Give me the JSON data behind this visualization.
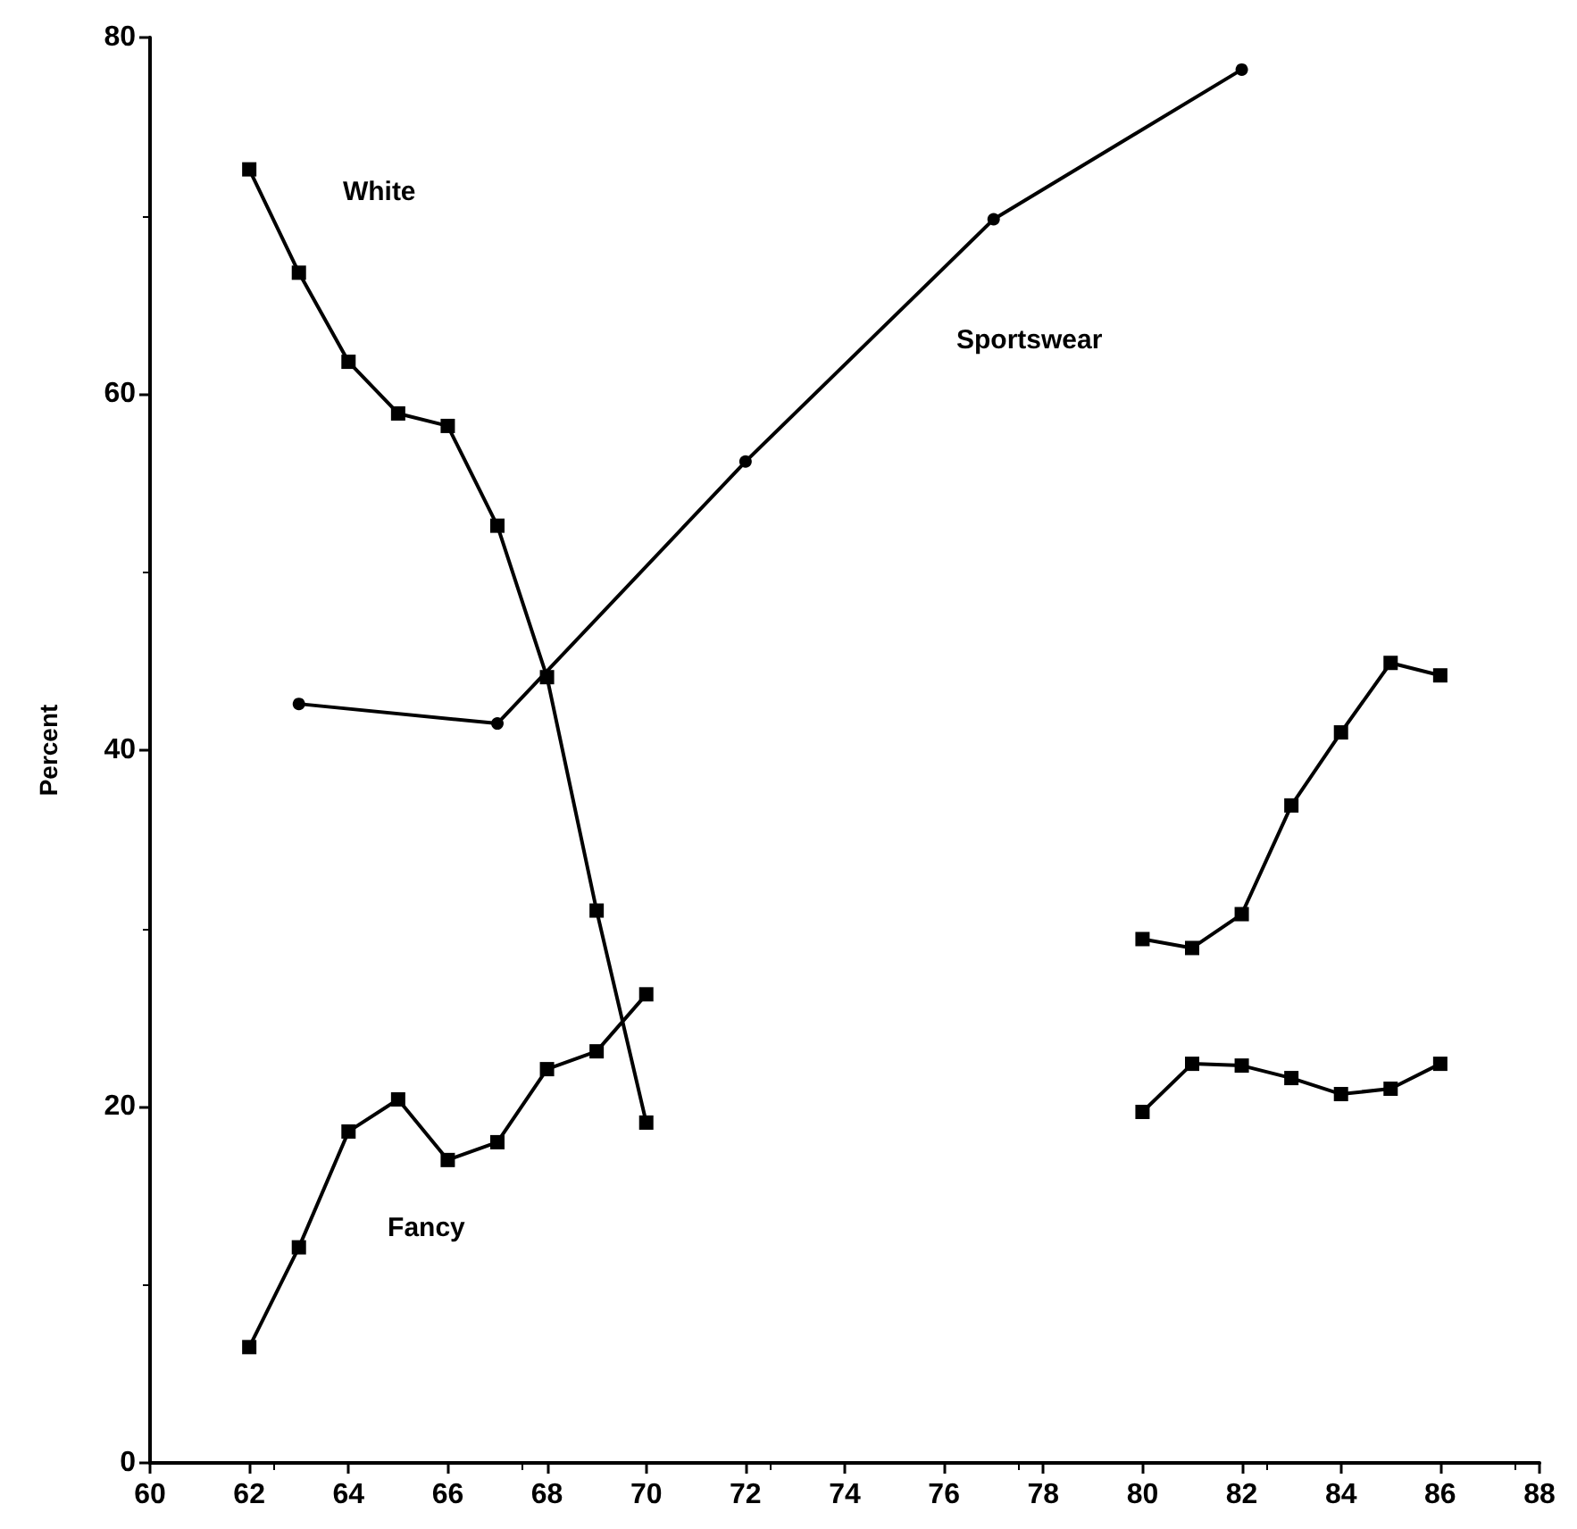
{
  "chart_data": {
    "type": "line",
    "ylabel": "Percent",
    "xlim": [
      60,
      88
    ],
    "xticks": [
      60,
      62,
      64,
      66,
      68,
      70,
      72,
      74,
      76,
      78,
      80,
      82,
      84,
      86,
      88
    ],
    "ylim": [
      0,
      80
    ],
    "yticks": [
      0,
      20,
      40,
      60,
      80
    ],
    "grid": false,
    "series": [
      {
        "name": "White",
        "color": "#000000",
        "marker": "square",
        "x": [
          62,
          63,
          64,
          65,
          66,
          67,
          68,
          69,
          70,
          75,
          80,
          81,
          82,
          83,
          84,
          85,
          86
        ],
        "values": [
          72.6,
          66.8,
          61.8,
          58.9,
          58.2,
          52.6,
          44.1,
          31.0,
          19.1,
          null,
          19.7,
          22.4,
          22.3,
          21.6,
          20.7,
          21.0,
          22.4
        ]
      },
      {
        "name": "Fancy",
        "color": "#000000",
        "marker": "square",
        "x": [
          62,
          63,
          64,
          65,
          66,
          67,
          68,
          69,
          70,
          75,
          80,
          81,
          82,
          83,
          84,
          85,
          86
        ],
        "values": [
          6.5,
          12.1,
          18.6,
          20.4,
          17.0,
          18.0,
          22.1,
          23.1,
          26.3,
          null,
          29.4,
          28.9,
          30.8,
          36.9,
          41.0,
          44.9,
          44.2
        ]
      },
      {
        "name": "Sportswear",
        "color": "#000000",
        "marker": "circle",
        "x": [
          63,
          67,
          72,
          77,
          82
        ],
        "values": [
          42.6,
          41.5,
          56.2,
          69.8,
          78.2
        ]
      }
    ]
  }
}
